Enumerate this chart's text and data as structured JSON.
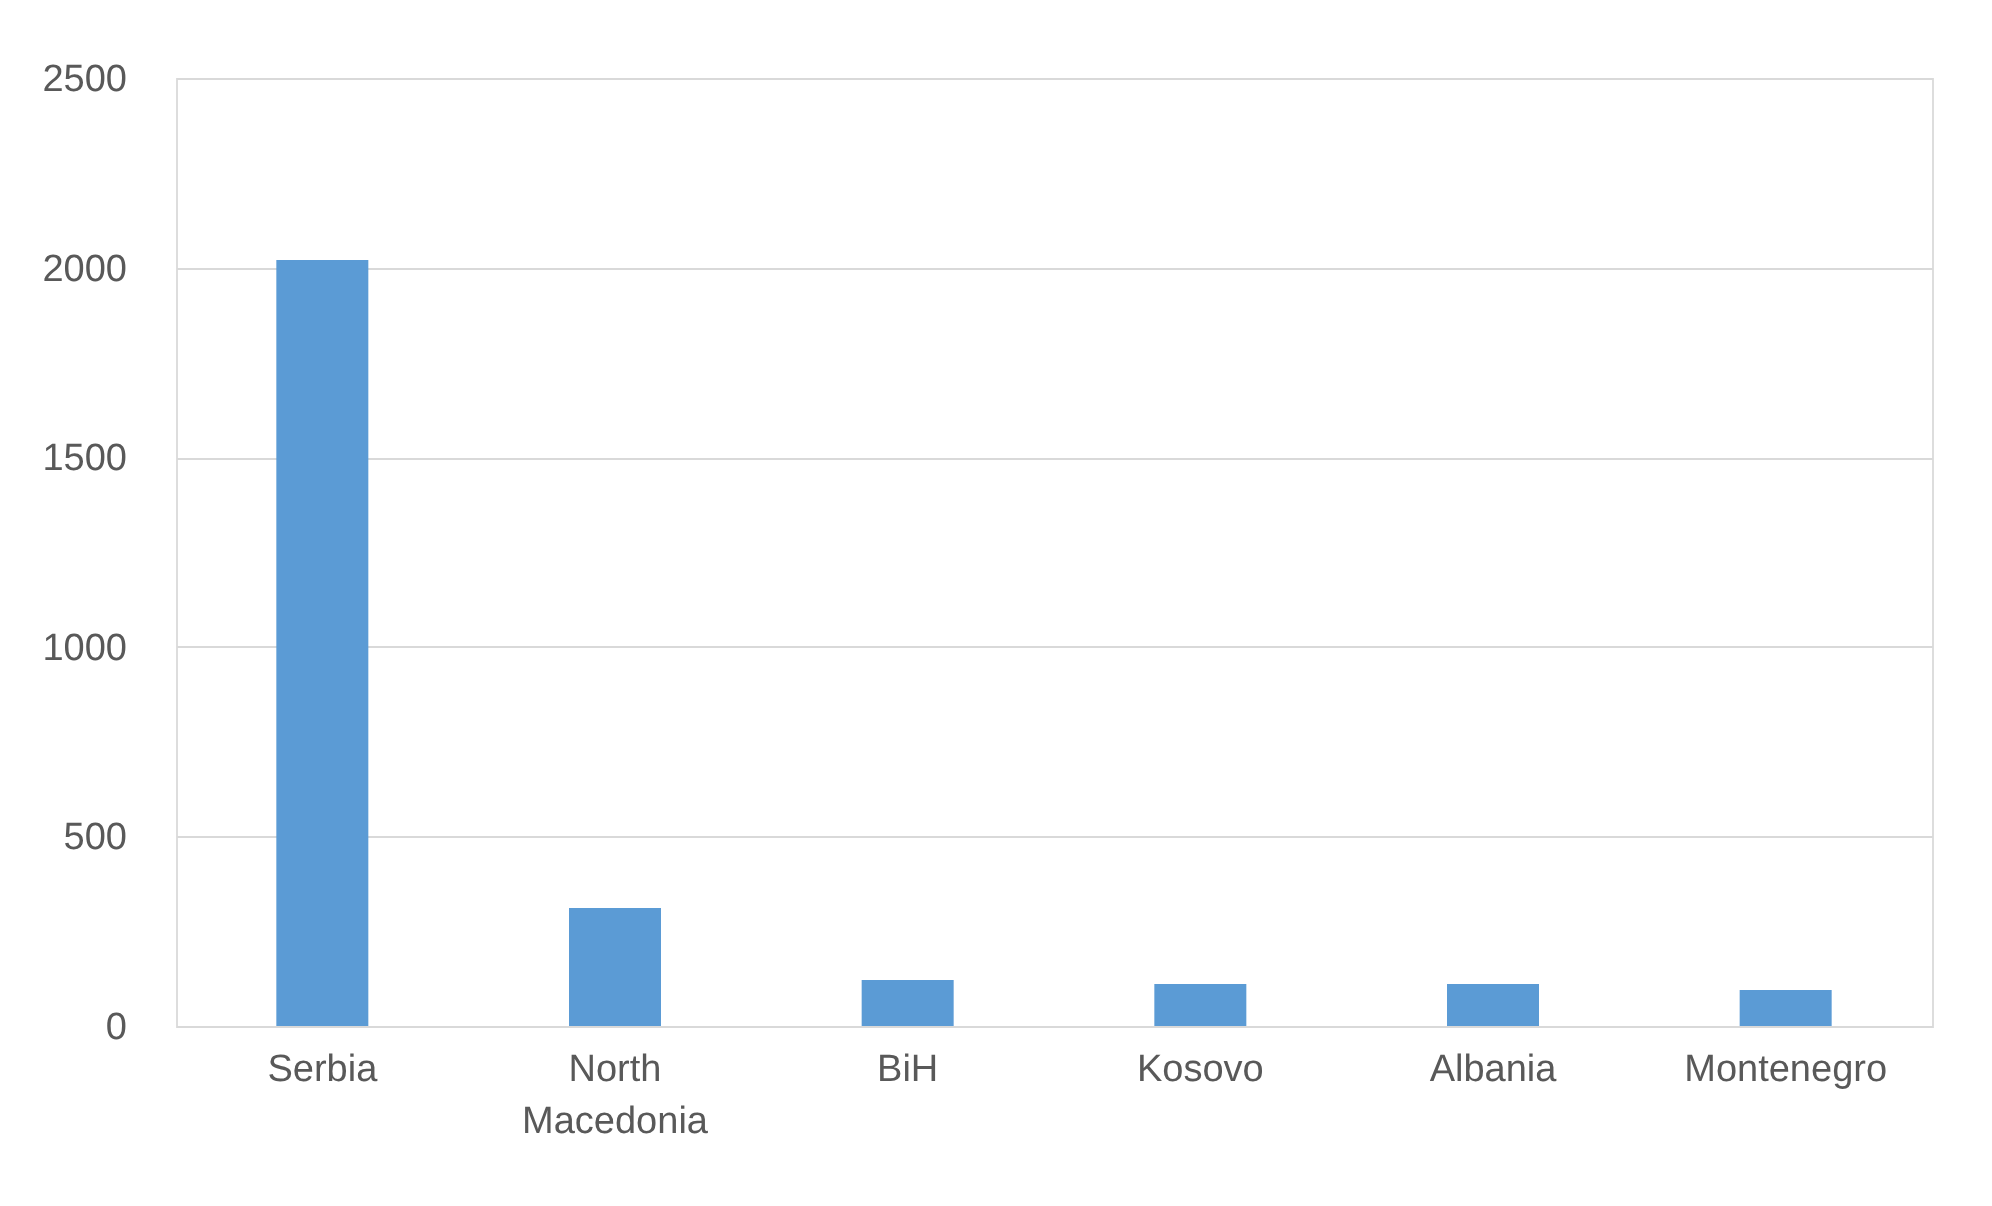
{
  "chart_data": {
    "type": "bar",
    "categories": [
      "Serbia",
      "North Macedonia",
      "BiH",
      "Kosovo",
      "Albania",
      "Montenegro"
    ],
    "values": [
      2020,
      311,
      121,
      111,
      111,
      95
    ],
    "color": "#5b9bd5",
    "ylim": [
      0,
      2500
    ],
    "yticks": [
      0,
      500,
      1000,
      1500,
      2000,
      2500
    ],
    "grid": "y"
  }
}
